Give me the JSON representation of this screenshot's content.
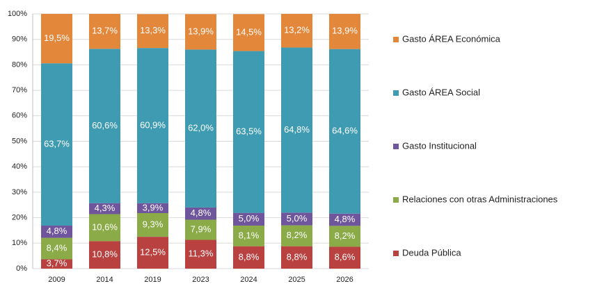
{
  "chart_data": {
    "type": "stacked_bar",
    "categories": [
      "2009",
      "2014",
      "2019",
      "2023",
      "2024",
      "2025",
      "2026"
    ],
    "series": [
      {
        "name": "Deuda Pública",
        "color": "#b9413f",
        "values": [
          3.7,
          10.8,
          12.5,
          11.3,
          8.8,
          8.8,
          8.6
        ],
        "value_labels": [
          "3,7%",
          "10,8%",
          "12,5%",
          "11,3%",
          "8,8%",
          "8,8%",
          "8,6%"
        ]
      },
      {
        "name": "Relaciones con otras Administraciones",
        "color": "#8aab47",
        "values": [
          8.4,
          10.6,
          9.3,
          7.9,
          8.1,
          8.2,
          8.2
        ],
        "value_labels": [
          "8,4%",
          "10,6%",
          "9,3%",
          "7,9%",
          "8,1%",
          "8,2%",
          "8,2%"
        ]
      },
      {
        "name": "Gasto Institucional",
        "color": "#6e559c",
        "values": [
          4.8,
          4.3,
          3.9,
          4.8,
          5.0,
          5.0,
          4.8
        ],
        "value_labels": [
          "4,8%",
          "4,3%",
          "3,9%",
          "4,8%",
          "5,0%",
          "5,0%",
          "4,8%"
        ]
      },
      {
        "name": "Gasto ÁREA Social",
        "color": "#3f9bb1",
        "values": [
          63.7,
          60.6,
          60.9,
          62.0,
          63.5,
          64.8,
          64.6
        ],
        "value_labels": [
          "63,7%",
          "60,6%",
          "60,9%",
          "62,0%",
          "63,5%",
          "64,8%",
          "64,6%"
        ]
      },
      {
        "name": "Gasto ÁREA Económica",
        "color": "#e3873b",
        "values": [
          19.5,
          13.7,
          13.3,
          13.9,
          14.5,
          13.2,
          13.9
        ],
        "value_labels": [
          "19,5%",
          "13,7%",
          "13,3%",
          "13,9%",
          "14,5%",
          "13,2%",
          "13,9%"
        ]
      }
    ],
    "ylim": [
      0,
      100
    ],
    "yticks": [
      {
        "value": 0,
        "label": "0%"
      },
      {
        "value": 10,
        "label": "10%"
      },
      {
        "value": 20,
        "label": "20%"
      },
      {
        "value": 30,
        "label": "30%"
      },
      {
        "value": 40,
        "label": "40%"
      },
      {
        "value": 50,
        "label": "50%"
      },
      {
        "value": 60,
        "label": "60%"
      },
      {
        "value": 70,
        "label": "70%"
      },
      {
        "value": 80,
        "label": "80%"
      },
      {
        "value": 90,
        "label": "90%"
      },
      {
        "value": 100,
        "label": "100%"
      }
    ],
    "grid": true,
    "legend": "right"
  }
}
